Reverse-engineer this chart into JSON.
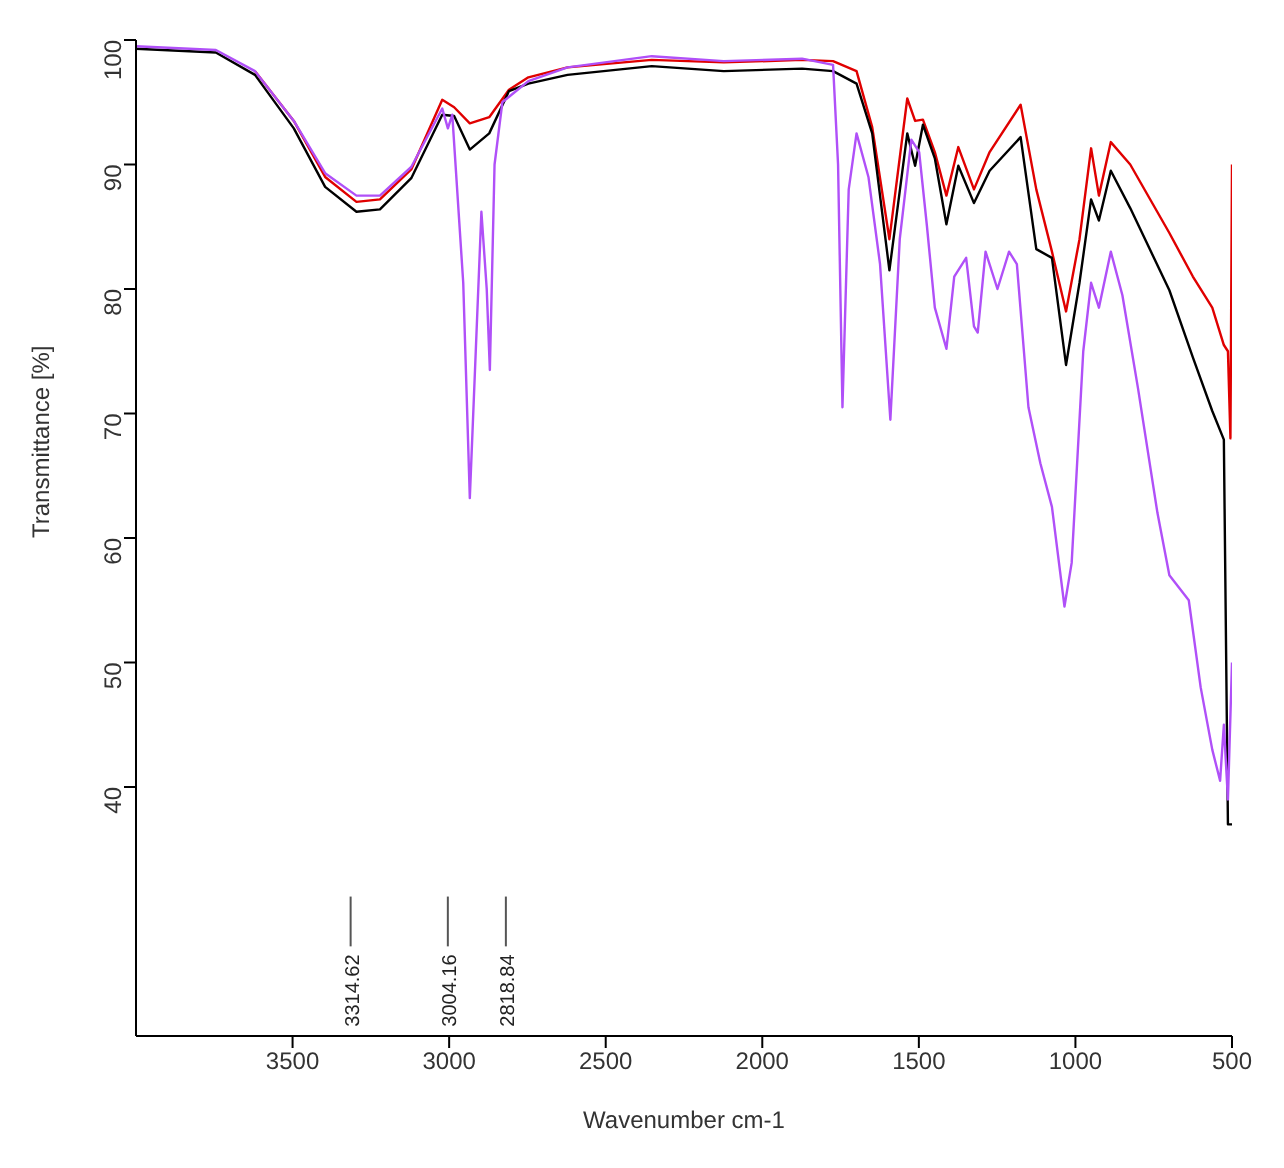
{
  "chart_data": {
    "type": "line",
    "xlabel": "Wavenumber cm-1",
    "ylabel": "Transmittance [%]",
    "xlim": [
      4000,
      500
    ],
    "xticks": [
      3500,
      3000,
      2500,
      2000,
      1500,
      1000,
      500
    ],
    "ylim": [
      20,
      100
    ],
    "yticks": [
      40,
      50,
      60,
      70,
      80,
      90,
      100
    ],
    "marker": "none",
    "line_style": "solid",
    "series": [
      {
        "color": "#e00000",
        "x": [
          3620,
          3496,
          3396,
          3296,
          3221,
          3121,
          3022,
          2984,
          2934,
          2872,
          2809,
          2747,
          2622,
          2353,
          2123,
          1873,
          1774,
          1699,
          1649,
          1594,
          1537,
          1512,
          1487,
          1449,
          1412,
          1374,
          1324,
          1274,
          1175,
          1125,
          1075,
          1030,
          987,
          950,
          925,
          887,
          825,
          700,
          625,
          563,
          526,
          513,
          505,
          500
        ],
        "values": [
          97.5,
          93.5,
          89,
          87,
          87.2,
          89.6,
          95.2,
          94.6,
          93.3,
          93.8,
          96,
          97,
          97.8,
          98.4,
          98.2,
          98.4,
          98.3,
          97.5,
          93,
          84,
          95.3,
          93.5,
          93.6,
          91,
          87.5,
          91.4,
          88,
          91,
          94.8,
          88,
          83,
          78.2,
          84,
          91.3,
          87.5,
          91.8,
          90,
          84.5,
          81,
          78.5,
          75.5,
          75,
          68,
          90
        ]
      },
      {
        "color": "#000000",
        "x": [
          4000,
          3745,
          3620,
          3496,
          3396,
          3296,
          3221,
          3121,
          3022,
          2984,
          2934,
          2872,
          2809,
          2747,
          2622,
          2353,
          2123,
          1873,
          1774,
          1699,
          1649,
          1594,
          1537,
          1512,
          1487,
          1449,
          1412,
          1374,
          1324,
          1274,
          1175,
          1125,
          1075,
          1030,
          987,
          950,
          925,
          887,
          825,
          700,
          625,
          563,
          526,
          513,
          500
        ],
        "values": [
          99.3,
          99,
          97.2,
          92.9,
          88.2,
          86.2,
          86.4,
          88.9,
          94,
          93.9,
          91.2,
          92.5,
          95.9,
          96.5,
          97.2,
          97.9,
          97.5,
          97.7,
          97.5,
          96.5,
          92.5,
          81.5,
          92.5,
          89.9,
          93.2,
          90.5,
          85.2,
          89.9,
          86.9,
          89.5,
          92.2,
          83.2,
          82.5,
          73.9,
          80.5,
          87.2,
          85.5,
          89.5,
          86.5,
          79.9,
          74.5,
          70.2,
          67.9,
          37,
          37
        ]
      },
      {
        "color": "#b050f8",
        "x": [
          4000,
          3745,
          3620,
          3496,
          3396,
          3296,
          3221,
          3121,
          3022,
          3004,
          2990,
          2955,
          2934,
          2915,
          2897,
          2880,
          2870,
          2855,
          2830,
          2747,
          2622,
          2353,
          2123,
          1873,
          1774,
          1758,
          1744,
          1724,
          1699,
          1661,
          1624,
          1591,
          1561,
          1524,
          1499,
          1474,
          1449,
          1412,
          1387,
          1349,
          1324,
          1312,
          1287,
          1249,
          1212,
          1187,
          1150,
          1112,
          1075,
          1035,
          1012,
          975,
          950,
          925,
          887,
          850,
          800,
          738,
          700,
          638,
          600,
          563,
          538,
          526,
          513,
          500
        ],
        "values": [
          99.5,
          99.2,
          97.5,
          93.5,
          89.3,
          87.5,
          87.5,
          89.8,
          94.5,
          92.9,
          94,
          80.5,
          63.2,
          75,
          86.2,
          80,
          73.5,
          90,
          95,
          96.7,
          97.8,
          98.7,
          98.3,
          98.5,
          98,
          90,
          70.5,
          88,
          92.5,
          89,
          82,
          69.5,
          84,
          92,
          91,
          85,
          78.5,
          75.2,
          81,
          82.5,
          77,
          76.5,
          83,
          80,
          83,
          82,
          70.5,
          66,
          62.5,
          54.5,
          58,
          75,
          80.5,
          78.5,
          83,
          79.5,
          72,
          62,
          57,
          55,
          48,
          43,
          40.5,
          45,
          39,
          50
        ]
      }
    ],
    "annotations": [
      {
        "text": "3314.62",
        "x": 3314.62
      },
      {
        "text": "3004.16",
        "x": 3004.16
      },
      {
        "text": "2818.84",
        "x": 2818.84
      }
    ]
  }
}
